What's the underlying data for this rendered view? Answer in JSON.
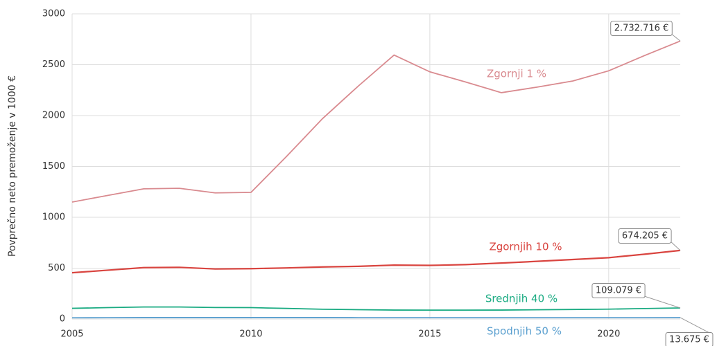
{
  "chart_data": {
    "type": "line",
    "y_label": "Povprečno neto premoženje v 1000 €",
    "x": [
      2005,
      2006,
      2007,
      2008,
      2009,
      2010,
      2011,
      2012,
      2013,
      2014,
      2015,
      2016,
      2017,
      2018,
      2019,
      2020,
      2021,
      2022
    ],
    "xlim": [
      2005,
      2022
    ],
    "xticks": [
      2005,
      2010,
      2015,
      2020
    ],
    "ylim": [
      0,
      3000
    ],
    "yticks": [
      0,
      500,
      1000,
      1500,
      2000,
      2500,
      3000
    ],
    "grid": true,
    "series": [
      {
        "name": "Zgornji 1 %",
        "color": "#d98a8f",
        "values": [
          1150,
          1215,
          1280,
          1285,
          1240,
          1245,
          1600,
          1970,
          2290,
          2595,
          2430,
          2330,
          2225,
          2280,
          2340,
          2440,
          2590,
          2732.716
        ],
        "value_labels": [
          null,
          null,
          null,
          null,
          null,
          null,
          null,
          null,
          null,
          null,
          null,
          null,
          null,
          null,
          null,
          null,
          null,
          "2.732.716 €"
        ]
      },
      {
        "name": "Zgornjih 10 %",
        "color": "#d9443f",
        "values": [
          455,
          480,
          505,
          508,
          492,
          495,
          502,
          512,
          518,
          530,
          527,
          535,
          550,
          567,
          585,
          603,
          637,
          674.205
        ],
        "value_labels": [
          null,
          null,
          null,
          null,
          null,
          null,
          null,
          null,
          null,
          null,
          null,
          null,
          null,
          null,
          null,
          null,
          null,
          "674.205 €"
        ]
      },
      {
        "name": "Srednjih 40 %",
        "color": "#1aab82",
        "values": [
          105,
          112,
          118,
          118,
          113,
          112,
          104,
          96,
          92,
          88,
          87,
          87,
          88,
          91,
          94,
          97,
          103,
          109.079
        ],
        "value_labels": [
          null,
          null,
          null,
          null,
          null,
          null,
          null,
          null,
          null,
          null,
          null,
          null,
          null,
          null,
          null,
          null,
          null,
          "109.079 €"
        ]
      },
      {
        "name": "Spodnjih 50 %",
        "color": "#5a9fcf",
        "values": [
          12,
          13,
          14,
          14,
          14,
          14,
          14,
          14,
          13,
          13,
          13,
          13,
          13,
          13,
          13,
          13,
          13,
          13.675
        ],
        "value_labels": [
          null,
          null,
          null,
          null,
          null,
          null,
          null,
          null,
          null,
          null,
          null,
          null,
          null,
          null,
          null,
          null,
          null,
          "13.675 €"
        ]
      }
    ]
  }
}
